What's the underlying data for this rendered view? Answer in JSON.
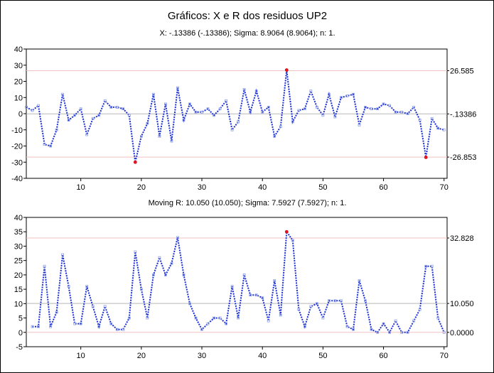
{
  "chart_data": [
    {
      "type": "line",
      "title": "Gráficos: X e R dos residuos UP2",
      "subtitle": "X: -.13386 (-.13386); Sigma: 8.9064 (8.9064); n: 1.",
      "xlim": [
        1,
        70.5
      ],
      "ylim": [
        -40,
        40
      ],
      "x_ticks": [
        10,
        20,
        30,
        40,
        50,
        60,
        70
      ],
      "y_ticks": [
        -40,
        -30,
        -20,
        -10,
        0,
        10,
        20,
        30,
        40
      ],
      "grid": false,
      "control_lines": {
        "ucl": {
          "value": 26.585,
          "label": "26.585"
        },
        "center": {
          "value": -0.13386,
          "label": "-.13386"
        },
        "lcl": {
          "value": -26.853,
          "label": "-26.853"
        }
      },
      "series": [
        {
          "x": [
            1,
            2,
            3,
            4,
            5,
            6,
            7,
            8,
            9,
            10,
            11,
            12,
            13,
            14,
            15,
            16,
            17,
            18,
            19,
            20,
            21,
            22,
            23,
            24,
            25,
            26,
            27,
            28,
            29,
            30,
            31,
            32,
            33,
            34,
            35,
            36,
            37,
            38,
            39,
            40,
            41,
            42,
            43,
            44,
            45,
            46,
            47,
            48,
            49,
            50,
            51,
            52,
            53,
            54,
            55,
            56,
            57,
            58,
            59,
            60,
            61,
            62,
            63,
            64,
            65,
            66,
            67,
            68,
            69,
            70
          ],
          "values": [
            4,
            2,
            5,
            -19,
            -20,
            -10,
            12,
            -4,
            -1,
            3,
            -13,
            -3,
            -1,
            8,
            4,
            4,
            3,
            -1,
            -30,
            -14,
            -6,
            12,
            -14,
            6,
            -17,
            16,
            -4,
            6,
            1,
            1,
            3,
            -1,
            3,
            8,
            -10,
            -5,
            15,
            1,
            14,
            1,
            4,
            -14,
            -8,
            27,
            -5,
            2,
            3,
            14,
            4,
            -1,
            12,
            -2,
            10,
            11,
            12,
            -7,
            4,
            3,
            3,
            6,
            5,
            1,
            1,
            0,
            4,
            -4,
            -27,
            -3,
            -9,
            -10
          ],
          "out_of_control_x": [
            19,
            44,
            67
          ]
        }
      ],
      "colors": {
        "line": "#1a2fd6",
        "point": "#8fa0e6",
        "out_of_control": "#e0141e",
        "ucl_lcl": "#f3c2c2",
        "center": "#b8b8b8"
      }
    },
    {
      "type": "line",
      "title": "",
      "subtitle": "Moving R: 10.050 (10.050); Sigma: 7.5927 (7.5927); n: 1.",
      "xlim": [
        1,
        70.5
      ],
      "ylim": [
        -5,
        40
      ],
      "x_ticks": [
        10,
        20,
        30,
        40,
        50,
        60,
        70
      ],
      "y_ticks": [
        -5,
        0,
        5,
        10,
        15,
        20,
        25,
        30,
        35,
        40
      ],
      "grid": false,
      "control_lines": {
        "ucl": {
          "value": 32.828,
          "label": "32.828"
        },
        "center": {
          "value": 10.05,
          "label": "10.050"
        },
        "lcl": {
          "value": 0.0,
          "label": "0.0000"
        }
      },
      "series": [
        {
          "x": [
            2,
            3,
            4,
            5,
            6,
            7,
            8,
            9,
            10,
            11,
            12,
            13,
            14,
            15,
            16,
            17,
            18,
            19,
            20,
            21,
            22,
            23,
            24,
            25,
            26,
            27,
            28,
            29,
            30,
            31,
            32,
            33,
            34,
            35,
            36,
            37,
            38,
            39,
            40,
            41,
            42,
            43,
            44,
            45,
            46,
            47,
            48,
            49,
            50,
            51,
            52,
            53,
            54,
            55,
            56,
            57,
            58,
            59,
            60,
            61,
            62,
            63,
            64,
            65,
            66,
            67,
            68,
            69,
            70
          ],
          "values": [
            2,
            2,
            23,
            2,
            7,
            27,
            16,
            3,
            3,
            16,
            9,
            2,
            9,
            3,
            1,
            1,
            5,
            28,
            15,
            5,
            20,
            26,
            20,
            24,
            33,
            20,
            10,
            5,
            1,
            3,
            5,
            5,
            3,
            16,
            5,
            20,
            13,
            13,
            12,
            4,
            18,
            6,
            35,
            32,
            8,
            2,
            9,
            10,
            5,
            11,
            11,
            11,
            2,
            1,
            18,
            11,
            1,
            0,
            3,
            0,
            4,
            0,
            0,
            4,
            8,
            23,
            23,
            5,
            0
          ],
          "out_of_control_x": [
            44
          ]
        }
      ],
      "colors": {
        "line": "#1a2fd6",
        "point": "#8fa0e6",
        "out_of_control": "#e0141e",
        "ucl_lcl": "#f3c2c2",
        "center": "#b8b8b8"
      }
    }
  ]
}
